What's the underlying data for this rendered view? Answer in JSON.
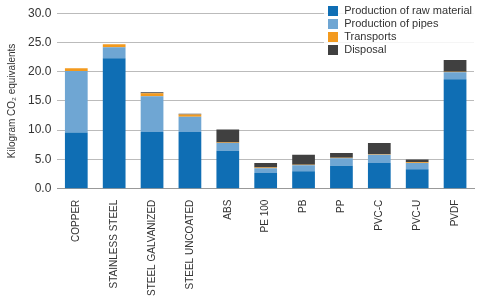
{
  "chart_data": {
    "type": "bar",
    "y_label": "Kilogram CO₂ equivalents",
    "categories": [
      "COPPER",
      "STAINLESS STEEL",
      "STEEL GALVANIZED",
      "STEEL UNCOATED",
      "ABS",
      "PE 100",
      "PB",
      "PP",
      "PVC-C",
      "PVC-U",
      "PVDF"
    ],
    "series": [
      {
        "name": "Production of raw material",
        "color": "#0f6eb4",
        "values": [
          9.6,
          22.3,
          9.7,
          9.7,
          6.5,
          2.7,
          3.0,
          3.9,
          4.4,
          3.3,
          18.7
        ]
      },
      {
        "name": "Production of pipes",
        "color": "#6fa6d3",
        "values": [
          10.5,
          1.9,
          6.1,
          2.6,
          1.3,
          0.8,
          1.0,
          1.3,
          1.4,
          1.1,
          1.2
        ]
      },
      {
        "name": "Transports",
        "color": "#f39a1e",
        "values": [
          0.5,
          0.5,
          0.5,
          0.4,
          0.1,
          0.1,
          0.1,
          0.1,
          0.1,
          0.1,
          0.1
        ]
      },
      {
        "name": "Disposal",
        "color": "#404040",
        "values": [
          0,
          0,
          0.2,
          0.1,
          2.2,
          0.8,
          1.7,
          0.8,
          1.9,
          0.5,
          2.0
        ]
      }
    ],
    "stacked": true,
    "ylim": [
      0,
      30
    ],
    "yticks": [
      {
        "value": 0,
        "label": "0.0"
      },
      {
        "value": 5,
        "label": "5.0"
      },
      {
        "value": 10,
        "label": "10.0"
      },
      {
        "value": 15,
        "label": "15.0"
      },
      {
        "value": 20,
        "label": "20.0"
      },
      {
        "value": 25,
        "label": "25.0"
      },
      {
        "value": 30,
        "label": "30.0"
      }
    ],
    "grid": true,
    "legend": "upper right"
  }
}
